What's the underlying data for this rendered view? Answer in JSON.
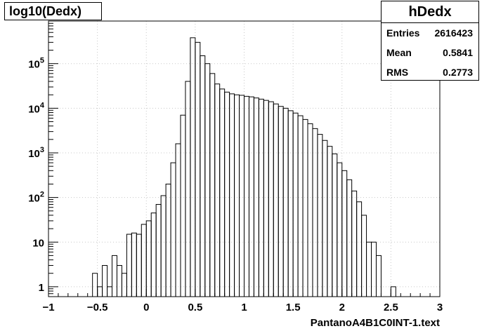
{
  "chart_data": {
    "type": "histogram",
    "title": "log10(Dedx)",
    "xlabel": "PantanoA4B1C0INT-1.text",
    "ylabel": "",
    "xlim": [
      -1,
      3
    ],
    "ylim": [
      0.6,
      900000
    ],
    "yscale": "log",
    "grid": true,
    "legend": "none",
    "x_ticks": [
      "−1",
      "−0.5",
      "0",
      "0.5",
      "1",
      "1.5",
      "2",
      "2.5",
      "3"
    ],
    "y_ticks": [
      "1",
      "10",
      "10^5:exp",
      "10^4:exp",
      "10^3:exp",
      "10^2:exp"
    ],
    "bin_width": 0.05,
    "bins": [
      {
        "x": -0.55,
        "y": 2
      },
      {
        "x": -0.5,
        "y": 1
      },
      {
        "x": -0.45,
        "y": 3
      },
      {
        "x": -0.4,
        "y": 1
      },
      {
        "x": -0.35,
        "y": 5
      },
      {
        "x": -0.3,
        "y": 3
      },
      {
        "x": -0.25,
        "y": 2
      },
      {
        "x": -0.2,
        "y": 15
      },
      {
        "x": -0.15,
        "y": 16
      },
      {
        "x": -0.1,
        "y": 15
      },
      {
        "x": -0.05,
        "y": 25
      },
      {
        "x": 0.0,
        "y": 30
      },
      {
        "x": 0.05,
        "y": 45
      },
      {
        "x": 0.1,
        "y": 70
      },
      {
        "x": 0.15,
        "y": 110
      },
      {
        "x": 0.2,
        "y": 200
      },
      {
        "x": 0.25,
        "y": 600
      },
      {
        "x": 0.3,
        "y": 1600
      },
      {
        "x": 0.35,
        "y": 7000
      },
      {
        "x": 0.4,
        "y": 40000
      },
      {
        "x": 0.45,
        "y": 380000
      },
      {
        "x": 0.5,
        "y": 300000
      },
      {
        "x": 0.55,
        "y": 150000
      },
      {
        "x": 0.6,
        "y": 100000
      },
      {
        "x": 0.65,
        "y": 60000
      },
      {
        "x": 0.7,
        "y": 35000
      },
      {
        "x": 0.75,
        "y": 27000
      },
      {
        "x": 0.8,
        "y": 23000
      },
      {
        "x": 0.85,
        "y": 21000
      },
      {
        "x": 0.9,
        "y": 20000
      },
      {
        "x": 0.95,
        "y": 19500
      },
      {
        "x": 1.0,
        "y": 18500
      },
      {
        "x": 1.05,
        "y": 18000
      },
      {
        "x": 1.1,
        "y": 17000
      },
      {
        "x": 1.15,
        "y": 16000
      },
      {
        "x": 1.2,
        "y": 15000
      },
      {
        "x": 1.25,
        "y": 14000
      },
      {
        "x": 1.3,
        "y": 12500
      },
      {
        "x": 1.35,
        "y": 11000
      },
      {
        "x": 1.4,
        "y": 10000
      },
      {
        "x": 1.45,
        "y": 8800
      },
      {
        "x": 1.5,
        "y": 7800
      },
      {
        "x": 1.55,
        "y": 6800
      },
      {
        "x": 1.6,
        "y": 5600
      },
      {
        "x": 1.65,
        "y": 4500
      },
      {
        "x": 1.7,
        "y": 3500
      },
      {
        "x": 1.75,
        "y": 2600
      },
      {
        "x": 1.8,
        "y": 1900
      },
      {
        "x": 1.85,
        "y": 1400
      },
      {
        "x": 1.9,
        "y": 950
      },
      {
        "x": 1.95,
        "y": 600
      },
      {
        "x": 2.0,
        "y": 400
      },
      {
        "x": 2.05,
        "y": 250
      },
      {
        "x": 2.1,
        "y": 140
      },
      {
        "x": 2.15,
        "y": 80
      },
      {
        "x": 2.2,
        "y": 40
      },
      {
        "x": 2.25,
        "y": 10
      },
      {
        "x": 2.3,
        "y": 10
      },
      {
        "x": 2.35,
        "y": 5
      },
      {
        "x": 2.4,
        "y": 0
      },
      {
        "x": 2.45,
        "y": 0
      },
      {
        "x": 2.5,
        "y": 1
      }
    ]
  },
  "stats": {
    "name": "hDedx",
    "rows": [
      {
        "label": "Entries",
        "value": "2616423"
      },
      {
        "label": "Mean",
        "value": "0.5841"
      },
      {
        "label": "RMS",
        "value": "0.2773"
      }
    ]
  }
}
